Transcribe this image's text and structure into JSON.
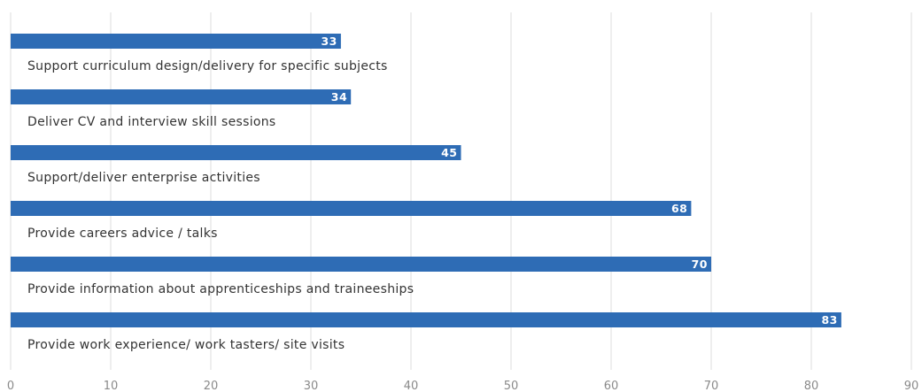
{
  "chart_data": {
    "type": "bar",
    "orientation": "horizontal",
    "categories": [
      "Support curriculum design/delivery for specific subjects",
      "Deliver CV and interview skill sessions",
      "Support/deliver enterprise activities",
      "Provide careers advice / talks",
      "Provide information about apprenticeships and traineeships",
      "Provide work experience/ work tasters/ site visits"
    ],
    "values": [
      33,
      34,
      45,
      68,
      70,
      83
    ],
    "value_labels": [
      "33",
      "34",
      "45",
      "68",
      "70",
      "83"
    ],
    "xlim": [
      0,
      90
    ],
    "xticks": [
      0,
      10,
      20,
      30,
      40,
      50,
      60,
      70,
      80,
      90
    ],
    "xtick_labels": [
      "0",
      "10",
      "20",
      "30",
      "40",
      "50",
      "60",
      "70",
      "80",
      "90"
    ],
    "grid": "vertical",
    "bar_color": "#2e6cb5",
    "label_color": "#ffffff",
    "title": "",
    "xlabel": "",
    "ylabel": ""
  }
}
